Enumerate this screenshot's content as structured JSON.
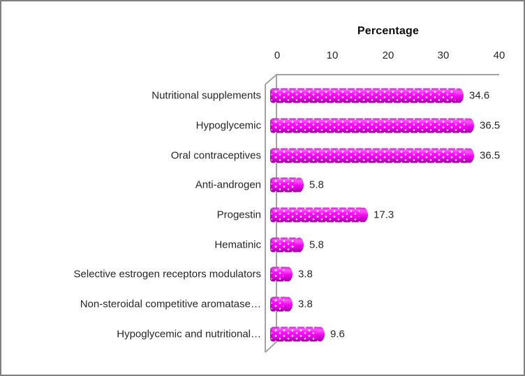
{
  "chart_data": {
    "type": "bar",
    "orientation": "horizontal",
    "title": "Percentage",
    "categories": [
      "Nutritional supplements",
      "Hypoglycemic",
      "Oral contraceptives",
      "Anti-androgen",
      "Progestin",
      "Hematinic",
      "Selective estrogen receptors modulators",
      "Non-steroidal competitive aromatase…",
      "Hypoglycemic and nutritional…"
    ],
    "values": [
      34.6,
      36.5,
      36.5,
      5.8,
      17.3,
      5.8,
      3.8,
      3.8,
      9.6
    ],
    "data_labels": [
      "34.6",
      "36.5",
      "36.5",
      "5.8",
      "17.3",
      "5.8",
      "3.8",
      "3.8",
      "9.6"
    ],
    "xticks": [
      "0",
      "10",
      "20",
      "30",
      "40"
    ],
    "xlim": [
      0,
      40
    ],
    "grid": false,
    "legend": false,
    "bar_color": "#FF00FF",
    "bar_texture": "polka-dot-cylinder",
    "axis_color": "#A6A6A6",
    "text_color": "#262626",
    "border_color": "#808080"
  }
}
